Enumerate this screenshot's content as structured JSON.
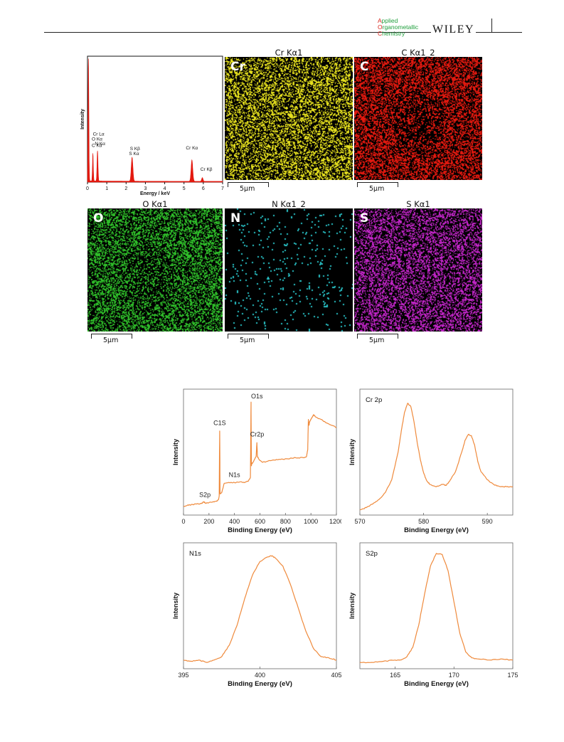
{
  "header": {
    "journal_line1_cap": "A",
    "journal_line1_rest": "pplied",
    "journal_line2_cap": "O",
    "journal_line2_rest": "rganometallic",
    "journal_line3_cap": "C",
    "journal_line3_rest": "hemistry",
    "publisher": "WILEY"
  },
  "eds_maps": [
    {
      "title": "Cr Kα1",
      "letter": "Cr",
      "scale": "5μm",
      "color": "#e6e01e",
      "density": 0.42,
      "hole": 0
    },
    {
      "title": "C Kα1_2",
      "letter": "C",
      "scale": "5μm",
      "color": "#e3190f",
      "density": 0.55,
      "hole": 0.6
    },
    {
      "title": "O Kα1",
      "letter": "O",
      "scale": "5μm",
      "color": "#2fbf2a",
      "density": 0.45,
      "hole": 0.45
    },
    {
      "title": "N Kα1_2",
      "letter": "N",
      "scale": "5μm",
      "color": "#29c4c8",
      "density": 0.012,
      "hole": 0
    },
    {
      "title": "S Kα1",
      "letter": "S",
      "scale": "5μm",
      "color": "#c125c7",
      "density": 0.42,
      "hole": 0
    }
  ],
  "chart_data": [
    {
      "type": "line",
      "xlabel": "Energy / keV",
      "ylabel": "Intensity",
      "xlim": [
        0,
        7
      ],
      "xticks": [
        0,
        1,
        2,
        3,
        4,
        5,
        6,
        7
      ],
      "color": "#e3190f",
      "peaks": [
        {
          "x": 0.05,
          "h": 1.0,
          "w": 0.03
        },
        {
          "x": 0.28,
          "h": 0.22,
          "w": 0.03
        },
        {
          "x": 0.52,
          "h": 0.24,
          "w": 0.035
        },
        {
          "x": 2.31,
          "h": 0.19,
          "w": 0.06
        },
        {
          "x": 5.41,
          "h": 0.17,
          "w": 0.06
        },
        {
          "x": 5.95,
          "h": 0.03,
          "w": 0.05
        }
      ],
      "annotations": [
        {
          "text": "Cr Lα",
          "x": 0.28,
          "y_frac": 0.37
        },
        {
          "text": "O Kα",
          "x": 0.22,
          "y_frac": 0.33
        },
        {
          "text": "C Kα",
          "x": 0.22,
          "y_frac": 0.28
        },
        {
          "text": "N Kα",
          "x": 0.38,
          "y_frac": 0.295
        },
        {
          "text": "S Kβ",
          "x": 2.2,
          "y_frac": 0.255
        },
        {
          "text": "S Kα",
          "x": 2.15,
          "y_frac": 0.215
        },
        {
          "text": "Cr Kα",
          "x": 5.1,
          "y_frac": 0.26
        },
        {
          "text": "Cr Kβ",
          "x": 5.85,
          "y_frac": 0.09
        }
      ]
    },
    {
      "type": "line",
      "xlabel": "Binding Energy (eV)",
      "ylabel": "Intensity",
      "xlim": [
        0,
        1200
      ],
      "xticks": [
        0,
        200,
        400,
        600,
        800,
        1000,
        1200
      ],
      "ylim": [
        0,
        100
      ],
      "color": "#ef8a3c",
      "x": [
        0,
        30,
        60,
        100,
        140,
        160,
        170,
        180,
        220,
        260,
        275,
        280,
        284,
        287,
        290,
        300,
        320,
        360,
        400,
        440,
        480,
        510,
        525,
        530,
        533,
        536,
        540,
        555,
        570,
        576,
        580,
        590,
        620,
        660,
        700,
        760,
        820,
        880,
        940,
        965,
        975,
        980,
        985,
        990,
        1000,
        1010,
        1020,
        1040,
        1080,
        1120,
        1160,
        1200
      ],
      "y": [
        5,
        6,
        6.5,
        7,
        7.5,
        9,
        8,
        8,
        8.5,
        9.5,
        11,
        14,
        70,
        16,
        16,
        17,
        25,
        25.5,
        25.5,
        26,
        25.5,
        27,
        30,
        95,
        40,
        42,
        42,
        45,
        48,
        60,
        48,
        46,
        43,
        44,
        45,
        45.5,
        46,
        47,
        47,
        48,
        54,
        80,
        75,
        78,
        80,
        82,
        84,
        82,
        80,
        77,
        75,
        73
      ],
      "annotations": [
        {
          "text": "O1s",
          "x": 530,
          "y": 97
        },
        {
          "text": "C1S",
          "x": 284,
          "y": 74
        },
        {
          "text": "Cr2p",
          "x": 578,
          "y": 64
        },
        {
          "text": "N1s",
          "x": 400,
          "y": 29
        },
        {
          "text": "S2p",
          "x": 168,
          "y": 12
        }
      ]
    },
    {
      "type": "line",
      "title": "Cr 2p",
      "xlabel": "Binding Energy (eV)",
      "ylabel": "Intensity",
      "xlim": [
        570,
        594
      ],
      "xticks": [
        570,
        580,
        590
      ],
      "ylim": [
        0,
        100
      ],
      "color": "#ef8a3c",
      "x": [
        570,
        571,
        572,
        573,
        574,
        575,
        576,
        576.5,
        577,
        577.5,
        578,
        578.5,
        579,
        579.5,
        580,
        580.5,
        581,
        582,
        583,
        583.5,
        584,
        585,
        586,
        586.5,
        587,
        587.5,
        588,
        588.5,
        589,
        590,
        591,
        592,
        593,
        594
      ],
      "y": [
        2,
        4,
        7,
        11,
        17,
        28,
        52,
        70,
        86,
        94,
        91,
        78,
        60,
        45,
        34,
        27,
        24,
        22,
        24,
        23,
        26,
        35,
        52,
        62,
        67,
        66,
        58,
        44,
        35,
        28,
        24,
        22,
        22,
        22
      ]
    },
    {
      "type": "line",
      "title": "N1s",
      "xlabel": "Binding Energy (eV)",
      "ylabel": "Intensity",
      "xlim": [
        395,
        405
      ],
      "xticks": [
        395,
        400,
        405
      ],
      "ylim": [
        0,
        100
      ],
      "color": "#ef8a3c",
      "x": [
        395,
        395.5,
        396,
        396.5,
        397,
        397.5,
        398,
        398.5,
        399,
        399.5,
        400,
        400.5,
        400.8,
        401,
        401.5,
        402,
        402.5,
        403,
        403.5,
        404,
        404.5,
        405
      ],
      "y": [
        5,
        4,
        5,
        3,
        5,
        8,
        18,
        35,
        58,
        78,
        90,
        94,
        95,
        93,
        86,
        70,
        50,
        30,
        15,
        8,
        7,
        5
      ]
    },
    {
      "type": "line",
      "title": "S2p",
      "xlabel": "Binding Energy (eV)",
      "ylabel": "Intensity",
      "xlim": [
        162,
        175
      ],
      "xticks": [
        165,
        170,
        175
      ],
      "ylim": [
        0,
        100
      ],
      "color": "#ef8a3c",
      "x": [
        162,
        163,
        164,
        165,
        165.5,
        166,
        166.5,
        167,
        167.5,
        168,
        168.5,
        169,
        169.5,
        170,
        170.5,
        171,
        171.5,
        172,
        173,
        174,
        175
      ],
      "y": [
        3,
        3,
        4,
        5,
        5,
        8,
        16,
        35,
        62,
        86,
        97,
        96,
        82,
        55,
        28,
        12,
        7,
        6,
        5,
        6,
        5
      ]
    }
  ]
}
